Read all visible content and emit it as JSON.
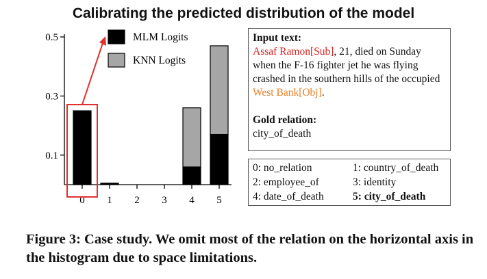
{
  "figure_title": "Calibrating the predicted distribution of the model",
  "chart_data": {
    "type": "bar",
    "stacked": true,
    "categories": [
      "0",
      "1",
      "2",
      "3",
      "4",
      "5"
    ],
    "series": [
      {
        "name": "MLM Logits",
        "color": "#000000",
        "values": [
          0.25,
          0.005,
          0,
          0,
          0.06,
          0.17
        ]
      },
      {
        "name": "KNN Logits",
        "color": "#a6a6a6",
        "values": [
          0,
          0,
          0,
          0,
          0.2,
          0.3
        ]
      }
    ],
    "yticks": [
      "0.1",
      "0.3",
      "0.5"
    ],
    "ylim": [
      0,
      0.5
    ],
    "legend_position": "top",
    "highlight": {
      "category": "0",
      "color": "#e03030",
      "arrow_to": "MLM Logits"
    }
  },
  "input_panel": {
    "header": "Input text:",
    "subject": "Assaf Ramon[Sub]",
    "text_mid": ", 21, died on Sunday when the F-16 fighter jet he was flying crashed in the southern hills of the occupied ",
    "object": "West Bank[Obj]",
    "text_end": ".",
    "gold_header": "Gold relation:",
    "gold_value": "city_of_death"
  },
  "relations": [
    {
      "label": "0: no_relation",
      "bold": false
    },
    {
      "label": "1: country_of_death",
      "bold": false
    },
    {
      "label": "2: employee_of",
      "bold": false
    },
    {
      "label": "3: identity",
      "bold": false
    },
    {
      "label": "4: date_of_death",
      "bold": false
    },
    {
      "label": "5: city_of_death",
      "bold": true
    }
  ],
  "caption": "Figure 3: Case study. We omit most of the relation on the horizontal axis in the histogram due to space limitations."
}
